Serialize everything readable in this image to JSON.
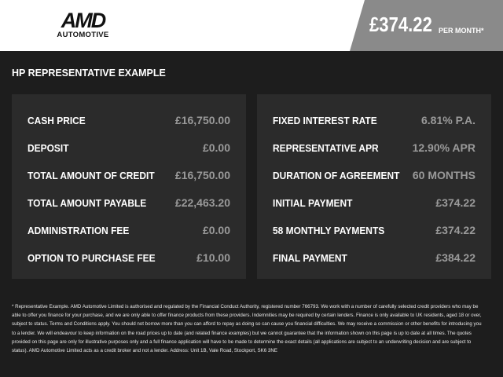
{
  "header": {
    "logo_main": "AMD",
    "logo_sub": "AUTOMOTIVE",
    "price": "£374.22",
    "per_month": "PER MONTH*"
  },
  "section_title": "HP REPRESENTATIVE EXAMPLE",
  "left_rows": [
    {
      "label": "CASH PRICE",
      "value": "£16,750.00"
    },
    {
      "label": "DEPOSIT",
      "value": "£0.00"
    },
    {
      "label": "TOTAL AMOUNT OF CREDIT",
      "value": "£16,750.00"
    },
    {
      "label": "TOTAL AMOUNT PAYABLE",
      "value": "£22,463.20"
    },
    {
      "label": "ADMINISTRATION FEE",
      "value": "£0.00"
    },
    {
      "label": "OPTION TO PURCHASE FEE",
      "value": "£10.00"
    }
  ],
  "right_rows": [
    {
      "label": "FIXED INTEREST RATE",
      "value": "6.81% P.A."
    },
    {
      "label": "REPRESENTATIVE APR",
      "value": "12.90% APR"
    },
    {
      "label": "DURATION OF AGREEMENT",
      "value": "60 MONTHS"
    },
    {
      "label": "INITIAL PAYMENT",
      "value": "£374.22"
    },
    {
      "label": "58 MONTHLY PAYMENTS",
      "value": "£374.22"
    },
    {
      "label": "FINAL PAYMENT",
      "value": "£384.22"
    }
  ],
  "disclaimer": "* Representative Example. AMD Automotive Limited is authorised and regulated by the Financial Conduct Authority, registered number 766793. We work with a number of carefully selected credit providers who may be able to offer you finance for your purchase, and we are only able to offer finance products from these providers. Indemnities may be required by certain lenders. Finance is only available to UK residents, aged 18 or over, subject to status. Terms and Conditions apply. You should not borrow more than you can afford to repay as doing so can cause you financial difficulties. We may receive a commission or other benefits for introducing you to a lender. We will endeavour to keep information on the road prices up to date (and related finance examples) but we cannot guarantee that the information shown on this page is up to date at all times. The quotes provided on this page are only for illustrative purposes only and a full finance application will have to be made to determine the exact details (all applications are subject to an underwriting decision and are subject to status). AMD Automotive Limited acts as a credit broker and not a lender. Address: Unit 1B, Vale Road, Stockport, SK6 3NE"
}
